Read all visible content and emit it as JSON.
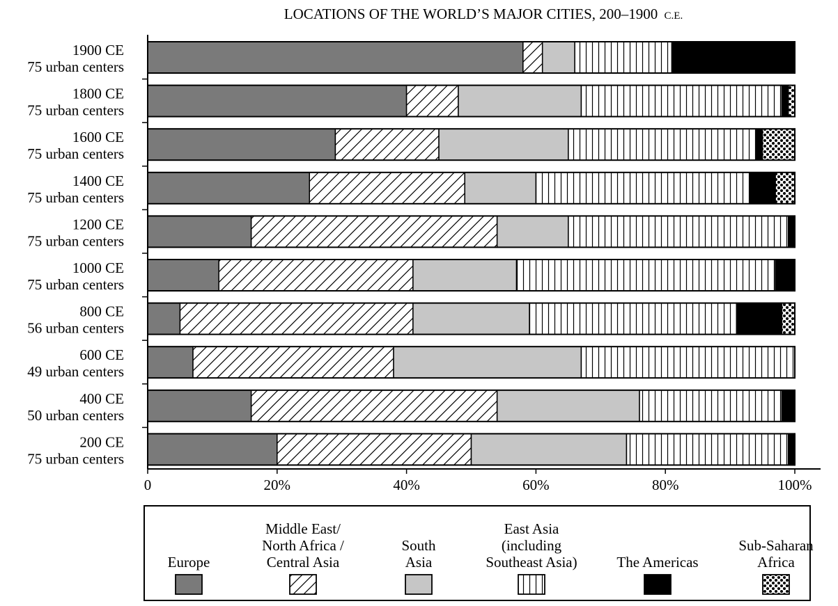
{
  "chart_data": {
    "type": "bar",
    "orientation": "horizontal",
    "stacked": true,
    "title": "LOCATIONS OF THE WORLD’S MAJOR CITIES, 200–1900",
    "title_suffix": "C.E.",
    "categories": [
      {
        "year": "1900 CE",
        "count": "75 urban centers"
      },
      {
        "year": "1800 CE",
        "count": "75 urban centers"
      },
      {
        "year": "1600 CE",
        "count": "75 urban centers"
      },
      {
        "year": "1400 CE",
        "count": "75 urban centers"
      },
      {
        "year": "1200 CE",
        "count": "75 urban centers"
      },
      {
        "year": "1000 CE",
        "count": "75 urban centers"
      },
      {
        "year": "800 CE",
        "count": "56 urban centers"
      },
      {
        "year": "600 CE",
        "count": "49 urban centers"
      },
      {
        "year": "400 CE",
        "count": "50 urban centers"
      },
      {
        "year": "200 CE",
        "count": "75 urban centers"
      }
    ],
    "series": [
      {
        "name": "Europe",
        "pattern": "solid-dark",
        "color": "#7a7a7a",
        "values": [
          58,
          40,
          29,
          25,
          16,
          11,
          5,
          7,
          16,
          20
        ]
      },
      {
        "name": "Middle East/ North Africa / Central Asia",
        "pattern": "diagonal-hatch",
        "color": "#ffffff",
        "values": [
          3,
          8,
          16,
          24,
          38,
          30,
          36,
          31,
          38,
          30
        ]
      },
      {
        "name": "South Asia",
        "pattern": "solid-light",
        "color": "#c6c6c6",
        "values": [
          5,
          19,
          20,
          11,
          11,
          16,
          18,
          29,
          22,
          24
        ]
      },
      {
        "name": "East Asia (including Southeast Asia)",
        "pattern": "vertical-lines",
        "color": "#ffffff",
        "values": [
          15,
          31,
          29,
          33,
          34,
          40,
          32,
          33,
          22,
          25
        ]
      },
      {
        "name": "The Americas",
        "pattern": "solid-black",
        "color": "#000000",
        "values": [
          19,
          1,
          1,
          4,
          1,
          3,
          7,
          0,
          2,
          1
        ]
      },
      {
        "name": "Sub-Saharan Africa",
        "pattern": "dots",
        "color": "#000000",
        "values": [
          0,
          1,
          5,
          3,
          0,
          0,
          2,
          0,
          0,
          0
        ]
      }
    ],
    "x_ticks": [
      "0",
      "20%",
      "40%",
      "60%",
      "80%",
      "100%"
    ],
    "xlim": [
      0,
      100
    ],
    "grid": false,
    "legend_position": "bottom"
  },
  "legend_items": [
    {
      "lines": [
        "Europe"
      ]
    },
    {
      "lines": [
        "Middle East/",
        "North Africa /",
        "Central Asia"
      ]
    },
    {
      "lines": [
        "South",
        "Asia"
      ]
    },
    {
      "lines": [
        "East Asia",
        "(including",
        "Southeast Asia)"
      ]
    },
    {
      "lines": [
        "The Americas"
      ]
    },
    {
      "lines": [
        "Sub-Saharan",
        "Africa"
      ]
    }
  ]
}
